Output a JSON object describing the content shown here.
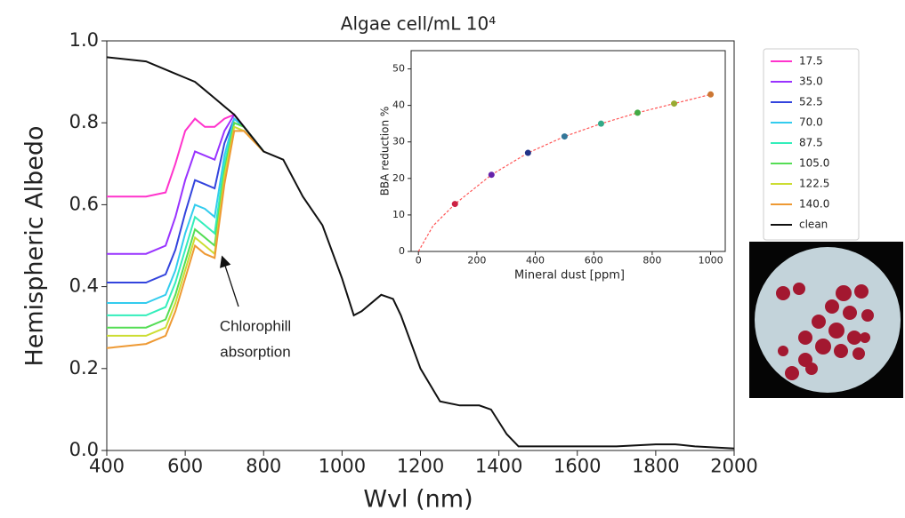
{
  "chart_data": [
    {
      "type": "line",
      "title": "Algae cell/mL 10⁴",
      "xlabel": "Wvl (nm)",
      "ylabel": "Hemispheric Albedo",
      "xlim": [
        400,
        2000
      ],
      "ylim": [
        0,
        1
      ],
      "xticks": [
        400,
        600,
        800,
        1000,
        1200,
        1400,
        1600,
        1800,
        2000
      ],
      "yticks": [
        {
          "value": 0,
          "label": "0.0"
        },
        0.2,
        0.4,
        0.6,
        0.8,
        {
          "value": 1,
          "label": "1.0"
        }
      ],
      "legend": "outside-right",
      "annotation": [
        "Chlorophill",
        "absorption"
      ],
      "x": [
        400,
        500,
        550,
        575,
        600,
        625,
        650,
        675,
        700,
        725,
        750,
        800,
        850,
        900,
        950,
        1000,
        1030,
        1050,
        1100,
        1130,
        1150,
        1200,
        1250,
        1300,
        1350,
        1380,
        1420,
        1450,
        1500,
        1600,
        1700,
        1800,
        1850,
        1900,
        2000
      ],
      "series": [
        {
          "name": "17.5",
          "color": "#ff33cc",
          "values": [
            0.62,
            0.62,
            0.63,
            0.7,
            0.78,
            0.81,
            0.79,
            0.79,
            0.81,
            0.82,
            0.79,
            0.73,
            null,
            null,
            null,
            null,
            null,
            null,
            null,
            null,
            null,
            null,
            null,
            null,
            null,
            null,
            null,
            null,
            null,
            null,
            null,
            null,
            null,
            null,
            null
          ]
        },
        {
          "name": "35.0",
          "color": "#9933ff",
          "values": [
            0.48,
            0.48,
            0.5,
            0.57,
            0.66,
            0.73,
            0.72,
            0.71,
            0.78,
            0.82,
            0.79,
            0.73,
            null,
            null,
            null,
            null,
            null,
            null,
            null,
            null,
            null,
            null,
            null,
            null,
            null,
            null,
            null,
            null,
            null,
            null,
            null,
            null,
            null,
            null,
            null
          ]
        },
        {
          "name": "52.5",
          "color": "#3344dd",
          "values": [
            0.41,
            0.41,
            0.43,
            0.49,
            0.58,
            0.66,
            0.65,
            0.64,
            0.75,
            0.81,
            0.79,
            0.73,
            null,
            null,
            null,
            null,
            null,
            null,
            null,
            null,
            null,
            null,
            null,
            null,
            null,
            null,
            null,
            null,
            null,
            null,
            null,
            null,
            null,
            null,
            null
          ]
        },
        {
          "name": "70.0",
          "color": "#33ccee",
          "values": [
            0.36,
            0.36,
            0.38,
            0.44,
            0.53,
            0.6,
            0.59,
            0.57,
            0.72,
            0.81,
            0.79,
            0.73,
            null,
            null,
            null,
            null,
            null,
            null,
            null,
            null,
            null,
            null,
            null,
            null,
            null,
            null,
            null,
            null,
            null,
            null,
            null,
            null,
            null,
            null,
            null
          ]
        },
        {
          "name": "87.5",
          "color": "#33eebb",
          "values": [
            0.33,
            0.33,
            0.35,
            0.41,
            0.49,
            0.57,
            0.55,
            0.53,
            0.7,
            0.8,
            0.79,
            0.73,
            null,
            null,
            null,
            null,
            null,
            null,
            null,
            null,
            null,
            null,
            null,
            null,
            null,
            null,
            null,
            null,
            null,
            null,
            null,
            null,
            null,
            null,
            null
          ]
        },
        {
          "name": "105.0",
          "color": "#55dd55",
          "values": [
            0.3,
            0.3,
            0.32,
            0.38,
            0.46,
            0.54,
            0.52,
            0.5,
            0.68,
            0.8,
            0.79,
            0.73,
            null,
            null,
            null,
            null,
            null,
            null,
            null,
            null,
            null,
            null,
            null,
            null,
            null,
            null,
            null,
            null,
            null,
            null,
            null,
            null,
            null,
            null,
            null
          ]
        },
        {
          "name": "122.5",
          "color": "#ccdd33",
          "values": [
            0.28,
            0.28,
            0.3,
            0.36,
            0.44,
            0.52,
            0.5,
            0.48,
            0.67,
            0.79,
            0.78,
            0.73,
            null,
            null,
            null,
            null,
            null,
            null,
            null,
            null,
            null,
            null,
            null,
            null,
            null,
            null,
            null,
            null,
            null,
            null,
            null,
            null,
            null,
            null,
            null
          ]
        },
        {
          "name": "140.0",
          "color": "#ee9933",
          "values": [
            0.25,
            0.26,
            0.28,
            0.34,
            0.42,
            0.5,
            0.48,
            0.47,
            0.65,
            0.78,
            0.78,
            0.73,
            null,
            null,
            null,
            null,
            null,
            null,
            null,
            null,
            null,
            null,
            null,
            null,
            null,
            null,
            null,
            null,
            null,
            null,
            null,
            null,
            null,
            null,
            null
          ]
        },
        {
          "name": "clean",
          "color": "#111111",
          "values": [
            0.96,
            0.95,
            0.93,
            0.92,
            0.91,
            0.9,
            0.88,
            0.86,
            0.84,
            0.82,
            0.79,
            0.73,
            0.71,
            0.62,
            0.55,
            0.42,
            0.33,
            0.34,
            0.38,
            0.37,
            0.33,
            0.2,
            0.12,
            0.11,
            0.11,
            0.1,
            0.04,
            0.01,
            0.01,
            0.01,
            0.01,
            0.015,
            0.015,
            0.01,
            0.005
          ]
        }
      ]
    },
    {
      "type": "scatter",
      "xlabel": "Mineral dust [ppm]",
      "ylabel": "BBA reduction %",
      "xlim": [
        -25,
        1050
      ],
      "ylim": [
        0,
        55
      ],
      "xticks": [
        0,
        200,
        400,
        600,
        800,
        1000
      ],
      "yticks": [
        0,
        10,
        20,
        30,
        40,
        50
      ],
      "x": [
        125,
        250,
        375,
        500,
        625,
        750,
        875,
        1000
      ],
      "values": [
        13,
        21,
        27,
        31.5,
        35,
        38,
        40.5,
        43
      ],
      "colors": [
        "#cc2244",
        "#6622aa",
        "#223388",
        "#337799",
        "#33aa88",
        "#44aa44",
        "#99aa33",
        "#cc7733"
      ],
      "fit": {
        "color": "#ff5555",
        "x": [
          0,
          50,
          125,
          250,
          375,
          500,
          625,
          750,
          875,
          1000
        ],
        "values": [
          0,
          7,
          13,
          21,
          27,
          31.5,
          35,
          38,
          40.5,
          43
        ]
      }
    }
  ]
}
